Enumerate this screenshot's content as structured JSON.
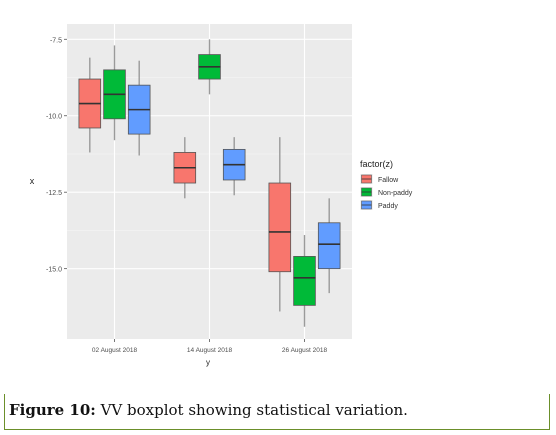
{
  "caption": {
    "label": "Figure 10:",
    "text": " VV boxplot showing statistical variation."
  },
  "chart_data": {
    "type": "boxplot",
    "xlabel": "y",
    "ylabel": "x",
    "ylim": [
      -17.3,
      -7.0
    ],
    "yticks": [
      -7.5,
      -10.0,
      -12.5,
      -15.0
    ],
    "ytick_labels": [
      "-7.5",
      "-10.0",
      "-12.5",
      "-15.0"
    ],
    "categories": [
      "02 August 2018",
      "14 August 2018",
      "26 August 2018"
    ],
    "legend": {
      "title": "factor(z)",
      "position": "right",
      "entries": [
        "Fallow",
        "Non-paddy",
        "Paddy"
      ]
    },
    "grid": true,
    "series": [
      {
        "name": "Fallow",
        "color": "#f8766d",
        "boxes": [
          {
            "category": "02 August 2018",
            "min": -11.2,
            "q1": -10.4,
            "median": -9.6,
            "q3": -8.8,
            "max": -8.1
          },
          {
            "category": "14 August 2018",
            "min": -12.7,
            "q1": -12.2,
            "median": -11.7,
            "q3": -11.2,
            "max": -10.7
          },
          {
            "category": "26 August 2018",
            "min": -16.4,
            "q1": -15.1,
            "median": -13.8,
            "q3": -12.2,
            "max": -10.7
          }
        ]
      },
      {
        "name": "Non-paddy",
        "color": "#00ba38",
        "boxes": [
          {
            "category": "02 August 2018",
            "min": -10.8,
            "q1": -10.1,
            "median": -9.3,
            "q3": -8.5,
            "max": -7.7
          },
          {
            "category": "14 August 2018",
            "min": -9.3,
            "q1": -8.8,
            "median": -8.4,
            "q3": -8.0,
            "max": -7.5
          },
          {
            "category": "26 August 2018",
            "min": -16.9,
            "q1": -16.2,
            "median": -15.3,
            "q3": -14.6,
            "max": -13.9
          }
        ]
      },
      {
        "name": "Paddy",
        "color": "#619cff",
        "boxes": [
          {
            "category": "02 August 2018",
            "min": -11.3,
            "q1": -10.6,
            "median": -9.8,
            "q3": -9.0,
            "max": -8.2
          },
          {
            "category": "14 August 2018",
            "min": -12.6,
            "q1": -12.1,
            "median": -11.6,
            "q3": -11.1,
            "max": -10.7
          },
          {
            "category": "26 August 2018",
            "min": -15.8,
            "q1": -15.0,
            "median": -14.2,
            "q3": -13.5,
            "max": -12.7
          }
        ]
      }
    ]
  }
}
